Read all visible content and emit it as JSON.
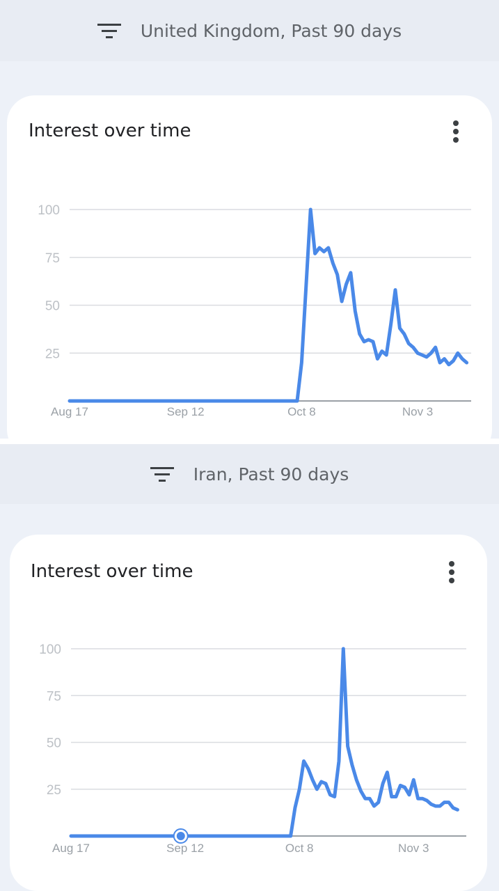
{
  "colors": {
    "line": "#4a89e8",
    "grid": "#dadce0",
    "axis": "#9aa0a6",
    "tick_text": "#bdc1c6",
    "xtick_text": "#9aa0a6"
  },
  "icons": {
    "filter": "filter-icon",
    "menu": "more-vert-icon",
    "hover": "hover-point-icon"
  },
  "panels": [
    {
      "filter_label": "United Kingdom, Past 90 days",
      "card_title": "Interest over time"
    },
    {
      "filter_label": "Iran, Past 90 days",
      "card_title": "Interest over time"
    }
  ],
  "chart_data": [
    {
      "type": "line",
      "title": "Interest over time",
      "region": "United Kingdom",
      "x_range": [
        0,
        90
      ],
      "ylim": [
        0,
        100
      ],
      "yticks": [
        25,
        50,
        75,
        100
      ],
      "xticks": [
        {
          "x": 0,
          "label": "Aug 17"
        },
        {
          "x": 26,
          "label": "Sep 12"
        },
        {
          "x": 52,
          "label": "Oct 8"
        },
        {
          "x": 78,
          "label": "Nov 3"
        }
      ],
      "grid": true,
      "series": [
        {
          "values": [
            [
              0,
              0
            ],
            [
              51,
              0
            ],
            [
              52,
              20
            ],
            [
              53,
              60
            ],
            [
              54,
              100
            ],
            [
              55,
              77
            ],
            [
              56,
              80
            ],
            [
              57,
              78
            ],
            [
              58,
              80
            ],
            [
              59,
              72
            ],
            [
              60,
              66
            ],
            [
              61,
              52
            ],
            [
              62,
              61
            ],
            [
              63,
              67
            ],
            [
              64,
              47
            ],
            [
              65,
              35
            ],
            [
              66,
              31
            ],
            [
              67,
              32
            ],
            [
              68,
              31
            ],
            [
              69,
              22
            ],
            [
              70,
              26
            ],
            [
              71,
              24
            ],
            [
              72,
              40
            ],
            [
              73,
              58
            ],
            [
              74,
              38
            ],
            [
              75,
              35
            ],
            [
              76,
              30
            ],
            [
              77,
              28
            ],
            [
              78,
              25
            ],
            [
              79,
              24
            ],
            [
              80,
              23
            ],
            [
              81,
              25
            ],
            [
              82,
              28
            ],
            [
              83,
              20
            ],
            [
              84,
              22
            ],
            [
              85,
              19
            ],
            [
              86,
              21
            ],
            [
              87,
              25
            ],
            [
              88,
              22
            ],
            [
              89,
              20
            ]
          ]
        }
      ]
    },
    {
      "type": "line",
      "title": "Interest over time",
      "region": "Iran",
      "x_range": [
        0,
        90
      ],
      "ylim": [
        0,
        100
      ],
      "yticks": [
        25,
        50,
        75,
        100
      ],
      "xticks": [
        {
          "x": 0,
          "label": "Aug 17"
        },
        {
          "x": 26,
          "label": "Sep 12"
        },
        {
          "x": 52,
          "label": "Oct 8"
        },
        {
          "x": 78,
          "label": "Nov 3"
        }
      ],
      "grid": true,
      "hover_x": 25,
      "series": [
        {
          "values": [
            [
              0,
              0
            ],
            [
              50,
              0
            ],
            [
              51,
              15
            ],
            [
              52,
              25
            ],
            [
              53,
              40
            ],
            [
              54,
              36
            ],
            [
              55,
              30
            ],
            [
              56,
              25
            ],
            [
              57,
              29
            ],
            [
              58,
              28
            ],
            [
              59,
              22
            ],
            [
              60,
              21
            ],
            [
              61,
              40
            ],
            [
              62,
              100
            ],
            [
              63,
              48
            ],
            [
              64,
              38
            ],
            [
              65,
              30
            ],
            [
              66,
              24
            ],
            [
              67,
              20
            ],
            [
              68,
              20
            ],
            [
              69,
              16
            ],
            [
              70,
              18
            ],
            [
              71,
              28
            ],
            [
              72,
              34
            ],
            [
              73,
              21
            ],
            [
              74,
              21
            ],
            [
              75,
              27
            ],
            [
              76,
              26
            ],
            [
              77,
              22
            ],
            [
              78,
              30
            ],
            [
              79,
              20
            ],
            [
              80,
              20
            ],
            [
              81,
              19
            ],
            [
              82,
              17
            ],
            [
              83,
              16
            ],
            [
              84,
              16
            ],
            [
              85,
              18
            ],
            [
              86,
              18
            ],
            [
              87,
              15
            ],
            [
              88,
              14
            ]
          ]
        }
      ]
    }
  ]
}
